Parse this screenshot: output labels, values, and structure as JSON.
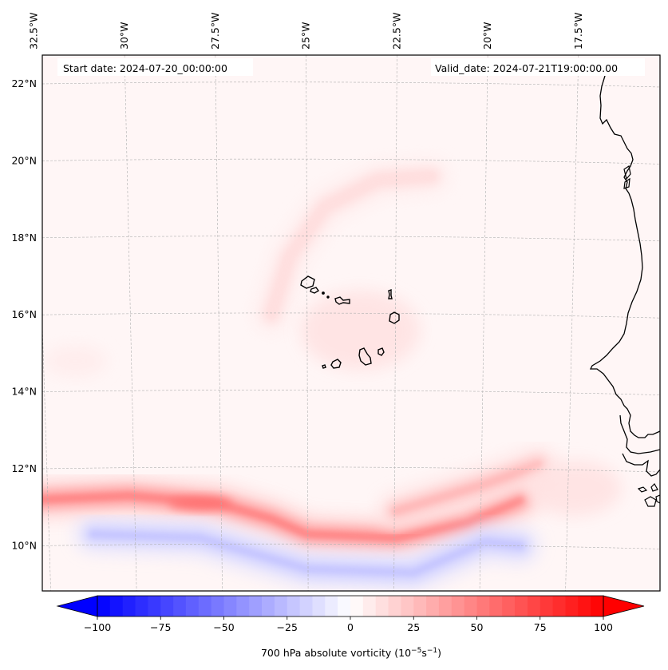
{
  "chart_data": {
    "type": "heatmap",
    "subtype": "filled-contour-map",
    "title": "",
    "header_left": "Start date: 2024-07-20_00:00:00",
    "header_right": "Valid_date: 2024-07-21T19:00:00.00",
    "variable": "700 hPa absolute vorticity",
    "units": "10^-5 s^-1",
    "colorbar": {
      "label_prefix": "700 hPa absolute vorticity (10",
      "label_exp1": "−5",
      "label_mid": "s",
      "label_exp2": "−1",
      "label_suffix": ")",
      "cmap": "bwr",
      "range": [
        -100,
        100
      ],
      "level_step": 5,
      "extend": "both",
      "ticks": [
        -100,
        -75,
        -50,
        -25,
        0,
        25,
        50,
        75,
        100
      ],
      "tick_labels": [
        "−100",
        "−75",
        "−50",
        "−25",
        "0",
        "25",
        "50",
        "75",
        "100"
      ],
      "colors": {
        "min": "#0000ff",
        "mid": "#ffffff",
        "max": "#ff0000"
      }
    },
    "lon_range": [
      -33.0,
      -15.0
    ],
    "lat_range": [
      9.0,
      22.5
    ],
    "lon_ticks": [
      -32.5,
      -30,
      -27.5,
      -25,
      -22.5,
      -20,
      -17.5
    ],
    "lon_tick_labels": [
      "32.5°W",
      "30°W",
      "27.5°W",
      "25°W",
      "22.5°W",
      "20°W",
      "17.5°W"
    ],
    "lat_ticks": [
      22,
      20,
      18,
      16,
      14,
      12,
      10
    ],
    "lat_tick_labels": [
      "22°N",
      "20°N",
      "18°N",
      "16°N",
      "14°N",
      "12°N",
      "10°N"
    ],
    "gridlines": true,
    "features": [
      {
        "name": "Cape Verde Islands",
        "lat": 16.0,
        "lon": -24.0
      },
      {
        "name": "West African coastline",
        "lon_approx": -17.0
      }
    ],
    "fields": [
      {
        "name": "easterly-wave vorticity maximum (band)",
        "path": [
          [
            -32.5,
            11.2
          ],
          [
            -30,
            11.3
          ],
          [
            -27.5,
            11.1
          ],
          [
            -26,
            10.7
          ],
          [
            -25,
            10.3
          ],
          [
            -22.5,
            10.2
          ],
          [
            -20.5,
            10.6
          ],
          [
            -19,
            11.2
          ]
        ],
        "value": 45
      },
      {
        "name": "secondary band",
        "path": [
          [
            -22.5,
            10.9
          ],
          [
            -20,
            11.6
          ],
          [
            -18.5,
            12.1
          ]
        ],
        "value": 25
      },
      {
        "name": "arc north of Cape Verde",
        "path": [
          [
            -26,
            16.0
          ],
          [
            -25.5,
            17.5
          ],
          [
            -24.5,
            18.8
          ],
          [
            -23,
            19.5
          ],
          [
            -21.5,
            19.6
          ]
        ],
        "value": 12
      },
      {
        "name": "negative band south",
        "path": [
          [
            -31,
            10.3
          ],
          [
            -28,
            10.2
          ],
          [
            -25,
            9.4
          ],
          [
            -22,
            9.3
          ],
          [
            -20,
            10.1
          ],
          [
            -19,
            10.0
          ]
        ],
        "value": -20
      },
      {
        "name": "background",
        "value": 3
      }
    ]
  }
}
